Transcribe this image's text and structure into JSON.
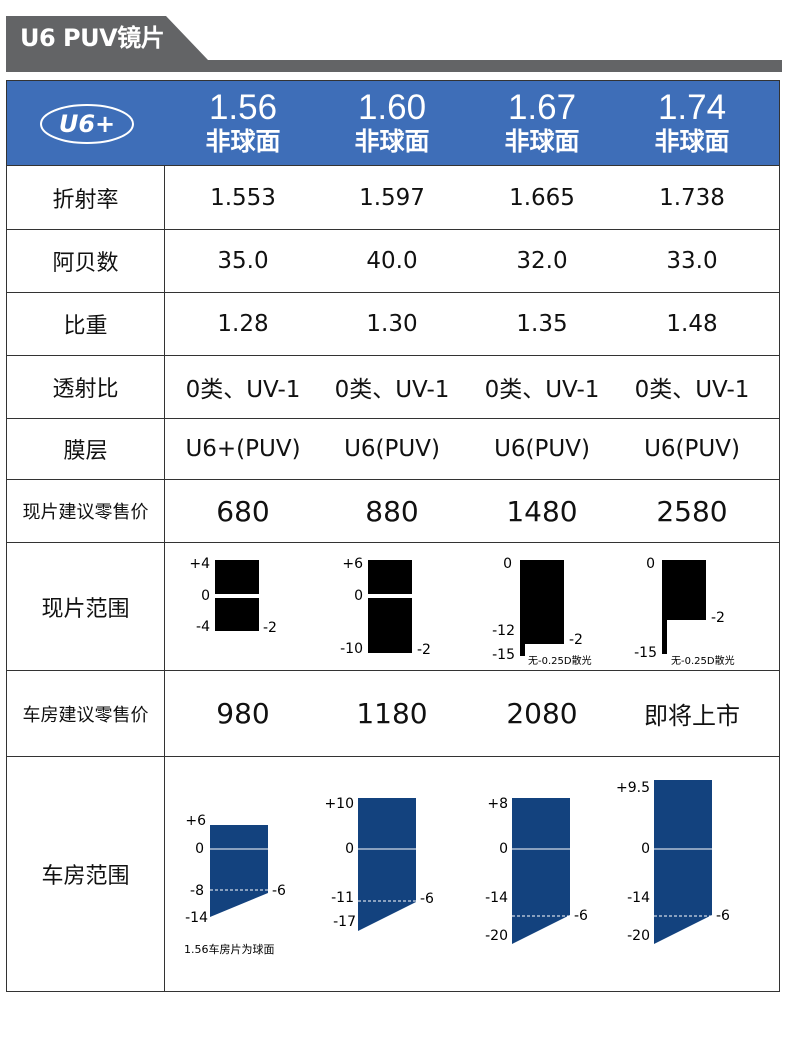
{
  "title": "U6 PUV镜片",
  "header": {
    "logo": "U6+",
    "columns": [
      {
        "index": "1.56",
        "type": "非球面"
      },
      {
        "index": "1.60",
        "type": "非球面"
      },
      {
        "index": "1.67",
        "type": "非球面"
      },
      {
        "index": "1.74",
        "type": "非球面"
      }
    ]
  },
  "rows": [
    {
      "label": "折射率",
      "values": [
        "1.553",
        "1.597",
        "1.665",
        "1.738"
      ]
    },
    {
      "label": "阿贝数",
      "values": [
        "35.0",
        "40.0",
        "32.0",
        "33.0"
      ]
    },
    {
      "label": "比重",
      "values": [
        "1.28",
        "1.30",
        "1.35",
        "1.48"
      ]
    },
    {
      "label": "透射比",
      "values": [
        "0类、UV-1",
        "0类、UV-1",
        "0类、UV-1",
        "0类、UV-1"
      ]
    },
    {
      "label": "膜层",
      "values": [
        "U6+(PUV)",
        "U6(PUV)",
        "U6(PUV)",
        "U6(PUV)"
      ]
    },
    {
      "label": "现片建议零售价",
      "values": [
        "680",
        "880",
        "1480",
        "2580"
      ]
    }
  ],
  "stock_range": {
    "label": "现片范围",
    "items": [
      {
        "top": "+4",
        "zero": "0",
        "bottom": "-4",
        "cyl": "-2",
        "note": ""
      },
      {
        "top": "+6",
        "zero": "0",
        "bottom": "-10",
        "cyl": "-2",
        "note": ""
      },
      {
        "top": "0",
        "mid": "-12",
        "bottom": "-15",
        "cyl": "-2",
        "note": "无-0.25D散光"
      },
      {
        "top": "0",
        "bottom": "-15",
        "cyl": "-2",
        "note": "无-0.25D散光"
      }
    ]
  },
  "lab_price": {
    "label": "车房建议零售价",
    "values": [
      "980",
      "1180",
      "2080",
      "即将上市"
    ]
  },
  "lab_range": {
    "label": "车房范围",
    "items": [
      {
        "top": "+6",
        "zero": "0",
        "mid": "-8",
        "bottom": "-14",
        "cyl": "-6",
        "note": "1.56车房片为球面"
      },
      {
        "top": "+10",
        "zero": "0",
        "mid": "-11",
        "bottom": "-17",
        "cyl": "-6",
        "note": ""
      },
      {
        "top": "+8",
        "zero": "0",
        "mid": "-14",
        "bottom": "-20",
        "cyl": "-6",
        "note": ""
      },
      {
        "top": "+9.5",
        "zero": "0",
        "mid": "-14",
        "bottom": "-20",
        "cyl": "-6",
        "note": ""
      }
    ]
  },
  "colors": {
    "header_blue": "#3e6eb8",
    "lab_blue": "#13427e",
    "title_gray": "#636466"
  }
}
